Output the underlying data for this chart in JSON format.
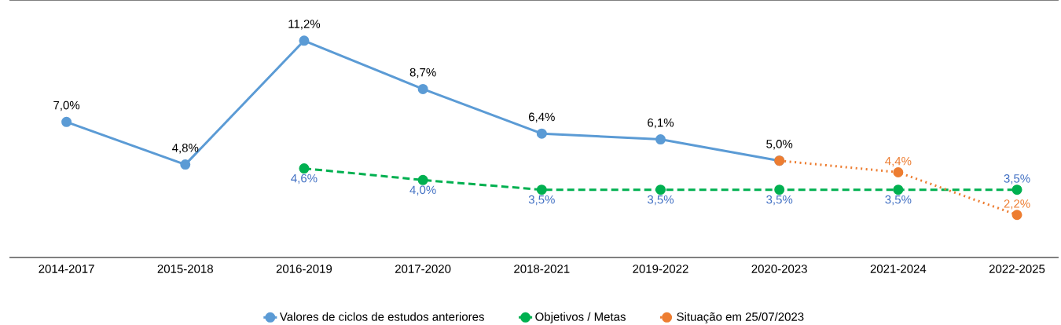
{
  "chart_data": {
    "type": "line",
    "categories": [
      "2014-2017",
      "2015-2018",
      "2016-2019",
      "2017-2020",
      "2018-2021",
      "2019-2022",
      "2020-2023",
      "2021-2024",
      "2022-2025"
    ],
    "series": [
      {
        "name": "Valores de ciclos de estudos anteriores",
        "color": "#5b9bd5",
        "line_style": "solid",
        "values": [
          7.0,
          4.8,
          11.2,
          8.7,
          6.4,
          6.1,
          5.0,
          null,
          null
        ],
        "value_labels": [
          "7,0%",
          "4,8%",
          "11,2%",
          "8,7%",
          "6,4%",
          "6,1%",
          "5,0%",
          null,
          null
        ]
      },
      {
        "name": "Objetivos / Metas",
        "color": "#00b050",
        "line_style": "dashed",
        "values": [
          null,
          null,
          4.6,
          4.0,
          3.5,
          3.5,
          3.5,
          3.5,
          3.5
        ],
        "value_labels": [
          null,
          null,
          "4,6%",
          "4,0%",
          "3,5%",
          "3,5%",
          "3,5%",
          "3,5%",
          "3,5%"
        ]
      },
      {
        "name": "Situação em 25/07/2023",
        "color": "#ed7d31",
        "line_style": "dotted",
        "values": [
          null,
          null,
          null,
          null,
          null,
          null,
          5.0,
          4.4,
          2.2
        ],
        "value_labels": [
          null,
          null,
          null,
          null,
          null,
          null,
          null,
          "4,4%",
          "2,2%"
        ]
      }
    ],
    "ylim": [
      0,
      13.3
    ],
    "tick_labels": "x",
    "marker": "circle",
    "legend": "bottom",
    "grid": false
  }
}
